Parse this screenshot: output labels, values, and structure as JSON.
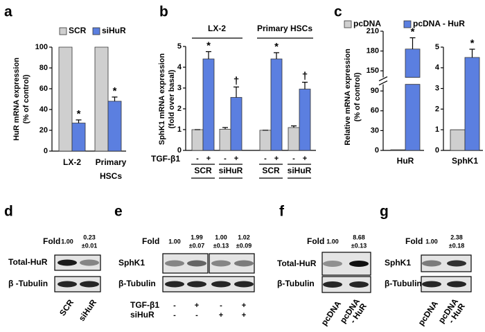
{
  "chart_data": [
    {
      "type": "bar",
      "panel": "a",
      "ylabel": [
        "HuR  mRNA expression",
        "(% of control)"
      ],
      "categories": [
        [
          "LX-2"
        ],
        [
          "Primary",
          "HSCs"
        ]
      ],
      "series": [
        {
          "name": "SCR",
          "color": "#cfcfcf",
          "values": [
            100,
            100
          ]
        },
        {
          "name": "siHuR",
          "color": "#5b7fe0",
          "values": [
            27,
            48
          ],
          "errors": [
            3,
            4
          ],
          "markers": [
            "*",
            "*"
          ]
        }
      ],
      "ylim": [
        0,
        100
      ],
      "yticks": [
        0,
        20,
        40,
        60,
        80,
        100
      ]
    },
    {
      "type": "bar",
      "panel": "b",
      "ylabel": [
        "SphK1 mRNA expression",
        "(fold over basal)"
      ],
      "group_labels": [
        "LX-2",
        "Primary HSCs"
      ],
      "treatment_label": "TGF-β1",
      "categories": [
        "SCR",
        "siHuR",
        "SCR",
        "siHuR"
      ],
      "series": [
        {
          "name": "-",
          "color": "#cfcfcf",
          "values": [
            1,
            1.02,
            0.97,
            1.1
          ],
          "errors": [
            0,
            0.08,
            0,
            0.08
          ]
        },
        {
          "name": "+",
          "color": "#5b7fe0",
          "values": [
            4.4,
            2.55,
            4.4,
            2.95
          ],
          "errors": [
            0.35,
            0.5,
            0.3,
            0.33
          ],
          "markers": [
            "*",
            "†",
            "*",
            "†"
          ]
        }
      ],
      "ylim": [
        0,
        5
      ],
      "yticks": [
        0,
        1,
        2,
        3,
        4,
        5
      ]
    },
    {
      "type": "bar",
      "panel": "c",
      "ylabel": [
        "Relative mRNA expression",
        "(% of control)"
      ],
      "categories": [
        "HuR",
        "SphK1"
      ],
      "series": [
        {
          "name": "pcDNA",
          "color": "#cfcfcf",
          "values": [
            1,
            1
          ]
        },
        {
          "name": "pcDNA - HuR",
          "color": "#5b7fe0",
          "values": [
            183,
            4.5
          ],
          "errors": [
            17,
            0.4
          ],
          "markers": [
            "*",
            "*"
          ]
        }
      ],
      "axes": [
        {
          "ylim": [
            0,
            210
          ],
          "yticks": [
            0,
            30,
            60,
            90,
            150,
            180,
            210
          ],
          "ybreak": [
            100,
            140
          ]
        },
        {
          "ylim": [
            0,
            5
          ],
          "yticks": [
            0,
            1,
            2,
            3,
            4,
            5
          ]
        }
      ]
    }
  ],
  "blots": [
    {
      "panel": "d",
      "fold_label": "Fold",
      "folds": [
        [
          "1.00"
        ],
        [
          "0.23",
          "±0.01"
        ]
      ],
      "rows": [
        "Total-HuR",
        "β -Tubulin"
      ],
      "lanes": [
        [
          "SCR"
        ],
        [
          "siHuR"
        ]
      ]
    },
    {
      "panel": "e",
      "fold_label": "Fold",
      "folds": [
        [
          "1.00"
        ],
        [
          "1.99",
          "±0.07"
        ],
        [
          "1.00",
          "±0.13"
        ],
        [
          "1.02",
          "±0.09"
        ]
      ],
      "rows": [
        "SphK1",
        "β-Tubulin"
      ],
      "conditions": [
        {
          "label": "TGF-β1",
          "signs": [
            "-",
            "+",
            "-",
            "+"
          ]
        },
        {
          "label": "siHuR",
          "signs": [
            "-",
            "-",
            "+",
            "+"
          ]
        }
      ]
    },
    {
      "panel": "f",
      "fold_label": "Fold",
      "folds": [
        [
          "1.00"
        ],
        [
          "8.68",
          "±0.13"
        ]
      ],
      "rows": [
        "Total-HuR",
        "β-Tubulin"
      ],
      "lanes": [
        [
          "pcDNA"
        ],
        [
          "pcDNA",
          "- HuR"
        ]
      ]
    },
    {
      "panel": "g",
      "fold_label": "Fold",
      "folds": [
        [
          "1.00"
        ],
        [
          "2.38",
          "±0.18"
        ]
      ],
      "rows": [
        "SphK1",
        "β-Tubulin"
      ],
      "lanes": [
        [
          "pcDNA"
        ],
        [
          "pcDNA",
          "- HuR"
        ]
      ]
    }
  ]
}
